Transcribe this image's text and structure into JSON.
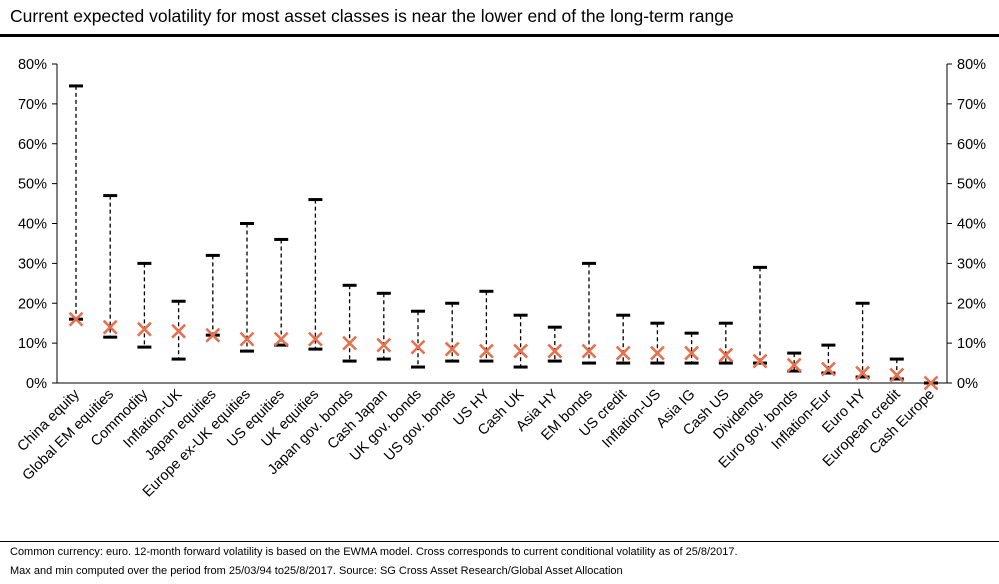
{
  "header": {
    "title": "Current expected volatility for most asset classes is near the lower end of the long-term range"
  },
  "footer": {
    "note1": "Common currency: euro. 12-month forward volatility is based on the EWMA model. Cross corresponds to current conditional volatility as of 25/8/2017.",
    "note2": "Max and min computed over the period from 25/03/94 to25/8/2017. Source: SG Cross Asset Research/Global Asset Allocation"
  },
  "chart_data": {
    "type": "range-with-marker",
    "title": "Current expected volatility for most asset classes is near the lower end of the long-term range",
    "ylim": [
      0,
      80
    ],
    "yticks": [
      "0%",
      "10%",
      "20%",
      "30%",
      "40%",
      "50%",
      "60%",
      "70%",
      "80%"
    ],
    "secondary_axis": true,
    "colors": {
      "range": "#000000",
      "current": "#e8704f"
    },
    "categories": [
      "China equity",
      "Global EM equities",
      "Commodity",
      "Inflation-UK",
      "Japan equities",
      "Europe ex-UK equities",
      "US equities",
      "UK equities",
      "Japan gov. bonds",
      "Cash Japan",
      "UK gov. bonds",
      "US gov. bonds",
      "US HY",
      "Cash UK",
      "Asia HY",
      "EM bonds",
      "US credit",
      "Inflation-US",
      "Asia IG",
      "Cash US",
      "Dividends",
      "Euro gov. bonds",
      "Inflation-Eur",
      "Euro HY",
      "European credit",
      "Cash Europe"
    ],
    "max": [
      74.5,
      47,
      30,
      20.5,
      32,
      40,
      36,
      46,
      24.5,
      22.5,
      18,
      20,
      23,
      17,
      14,
      30,
      17,
      15,
      12.5,
      15,
      29,
      7.5,
      9.5,
      20,
      6,
      0
    ],
    "min": [
      16,
      11.5,
      9,
      6,
      12,
      8,
      9.5,
      8.5,
      5.5,
      6,
      4,
      5.5,
      5.5,
      4,
      5.5,
      5,
      5,
      5,
      5,
      5,
      5,
      3,
      2.5,
      1.5,
      1,
      0
    ],
    "current": [
      16,
      14,
      13.5,
      13,
      12,
      11,
      11,
      11,
      10,
      9.5,
      9,
      8.5,
      8,
      8,
      8,
      8,
      7.5,
      7.5,
      7.5,
      7,
      5.5,
      4.5,
      3.5,
      2.5,
      2,
      0
    ]
  }
}
